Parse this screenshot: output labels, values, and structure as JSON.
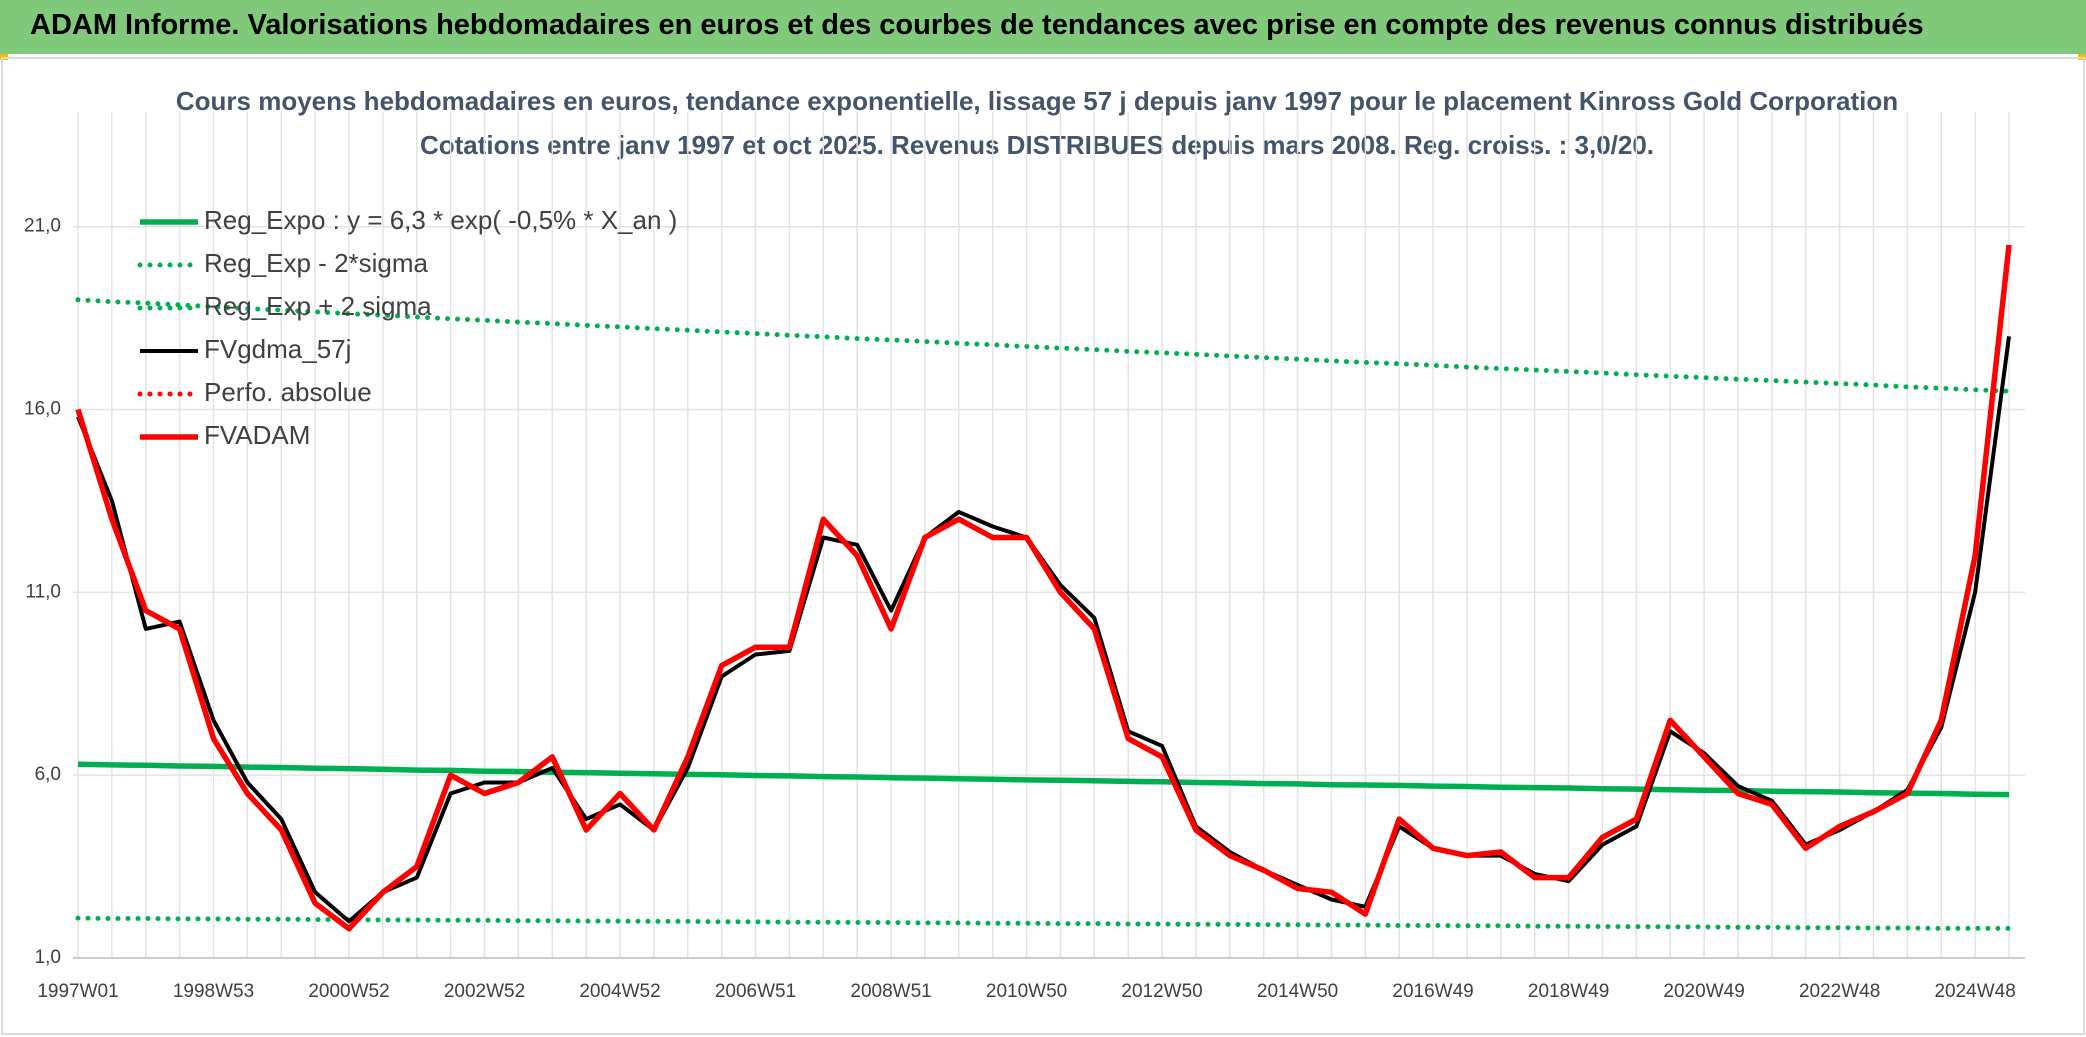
{
  "header": {
    "title": "ADAM Informe. Valorisations hebdomadaires en euros et des courbes de tendances avec prise en compte des revenus connus distribués"
  },
  "chart_data": {
    "type": "line",
    "title": "Cours moyens hebdomadaires en euros, tendance exponentielle, lissage 57 j depuis janv 1997 pour le placement Kinross Gold Corporation",
    "subtitle": "Cotations entre janv 1997 et oct 2025. Revenus DISTRIBUES depuis mars 2008. Reg. croiss. : 3,0/20.",
    "categories": [
      "1997W01",
      null,
      null,
      null,
      "1998W53",
      null,
      null,
      null,
      "2000W52",
      null,
      null,
      null,
      "2002W52",
      null,
      null,
      null,
      "2004W52",
      null,
      null,
      null,
      "2006W51",
      null,
      null,
      null,
      "2008W51",
      null,
      null,
      null,
      "2010W50",
      null,
      null,
      null,
      "2012W50",
      null,
      null,
      null,
      "2014W50",
      null,
      null,
      null,
      "2016W49",
      null,
      null,
      null,
      "2018W49",
      null,
      null,
      null,
      "2020W49",
      null,
      null,
      null,
      "2022W48",
      null,
      null,
      null,
      "2024W48",
      null
    ],
    "ylim": [
      1,
      24
    ],
    "yticks": [
      {
        "value": 1,
        "label": "1,0"
      },
      {
        "value": 6,
        "label": "6,0"
      },
      {
        "value": 11,
        "label": "11,0"
      },
      {
        "value": 16,
        "label": "16,0"
      },
      {
        "value": 21,
        "label": "21,0"
      }
    ],
    "grid": true,
    "legend": "upper left",
    "series": [
      {
        "name": "Reg_Expo : y = 6,3 * exp( -0,5% *  X_an )",
        "color": "#00b050",
        "dotted": false,
        "values": [
          6.3,
          6.28,
          6.27,
          6.25,
          6.24,
          6.22,
          6.21,
          6.19,
          6.18,
          6.16,
          6.14,
          6.13,
          6.11,
          6.1,
          6.08,
          6.07,
          6.05,
          6.04,
          6.02,
          6.01,
          5.99,
          5.98,
          5.96,
          5.95,
          5.93,
          5.92,
          5.9,
          5.89,
          5.87,
          5.86,
          5.85,
          5.83,
          5.82,
          5.8,
          5.79,
          5.77,
          5.76,
          5.74,
          5.73,
          5.72,
          5.7,
          5.69,
          5.67,
          5.66,
          5.65,
          5.63,
          5.62,
          5.6,
          5.59,
          5.58,
          5.56,
          5.55,
          5.54,
          5.52,
          5.51,
          5.5,
          5.48,
          5.47
        ]
      },
      {
        "name": "Reg_Exp - 2*sigma",
        "color": "#00b050",
        "dotted": true,
        "values": [
          2.09,
          2.08,
          2.08,
          2.07,
          2.07,
          2.06,
          2.06,
          2.05,
          2.05,
          2.04,
          2.04,
          2.03,
          2.03,
          2.02,
          2.02,
          2.01,
          2.01,
          2.0,
          2.0,
          1.99,
          1.99,
          1.98,
          1.98,
          1.97,
          1.97,
          1.96,
          1.96,
          1.95,
          1.95,
          1.94,
          1.94,
          1.93,
          1.93,
          1.92,
          1.92,
          1.91,
          1.91,
          1.9,
          1.9,
          1.89,
          1.89,
          1.88,
          1.88,
          1.87,
          1.87,
          1.86,
          1.86,
          1.85,
          1.85,
          1.84,
          1.84,
          1.83,
          1.83,
          1.82,
          1.82,
          1.81,
          1.81,
          1.81
        ]
      },
      {
        "name": "Reg_Exp + 2 sigma",
        "color": "#00b050",
        "dotted": true,
        "values": [
          19.0,
          18.95,
          18.91,
          18.86,
          18.81,
          18.76,
          18.72,
          18.67,
          18.62,
          18.58,
          18.53,
          18.48,
          18.44,
          18.39,
          18.35,
          18.3,
          18.26,
          18.21,
          18.17,
          18.12,
          18.08,
          18.03,
          17.99,
          17.94,
          17.9,
          17.86,
          17.81,
          17.77,
          17.72,
          17.68,
          17.64,
          17.59,
          17.55,
          17.51,
          17.46,
          17.42,
          17.38,
          17.33,
          17.29,
          17.25,
          17.21,
          17.16,
          17.12,
          17.08,
          17.04,
          17.0,
          16.95,
          16.91,
          16.87,
          16.83,
          16.79,
          16.75,
          16.71,
          16.67,
          16.62,
          16.58,
          16.54,
          16.5
        ]
      },
      {
        "name": "FVgdma_57j",
        "color": "#000000",
        "dotted": false,
        "values": [
          15.8,
          13.5,
          10,
          10.2,
          7.5,
          5.8,
          4.8,
          2.8,
          2.0,
          2.8,
          3.2,
          5.5,
          5.8,
          5.8,
          6.2,
          4.8,
          5.2,
          4.5,
          6.2,
          8.7,
          9.3,
          9.4,
          12.5,
          12.3,
          10.5,
          12.5,
          13.2,
          12.8,
          12.5,
          11.2,
          10.3,
          7.2,
          6.8,
          4.6,
          3.9,
          3.4,
          3.0,
          2.6,
          2.4,
          4.6,
          4.0,
          3.8,
          3.8,
          3.3,
          3.1,
          4.1,
          4.6,
          7.2,
          6.6,
          5.7,
          5.3,
          4.1,
          4.5,
          5.0,
          5.6,
          7.3,
          11,
          18
        ]
      },
      {
        "name": "Perfo. absolue",
        "color": "#ff0000",
        "dotted": true,
        "values": [
          null,
          null,
          null,
          null,
          null,
          null,
          null,
          null,
          null,
          null,
          null,
          null,
          null,
          null,
          null,
          null,
          null,
          null,
          null,
          null,
          null,
          null,
          null,
          null,
          null,
          null,
          null,
          null,
          null,
          null,
          null,
          null,
          null,
          null,
          null,
          null,
          null,
          null,
          null,
          null,
          null,
          null,
          null,
          null,
          null,
          null,
          null,
          null,
          null,
          null,
          null,
          null,
          null,
          null,
          null,
          null,
          null,
          null
        ]
      },
      {
        "name": "FVADAM",
        "color": "#ff0000",
        "dotted": false,
        "values": [
          16,
          13,
          10.5,
          10,
          7,
          5.5,
          4.5,
          2.5,
          1.8,
          2.8,
          3.5,
          6,
          5.5,
          5.8,
          6.5,
          4.5,
          5.5,
          4.5,
          6.5,
          9,
          9.5,
          9.5,
          13,
          12,
          10,
          12.5,
          13,
          12.5,
          12.5,
          11,
          10,
          7,
          6.5,
          4.5,
          3.8,
          3.4,
          2.9,
          2.8,
          2.2,
          4.8,
          4.0,
          3.8,
          3.9,
          3.2,
          3.2,
          4.3,
          4.8,
          7.5,
          6.5,
          5.5,
          5.2,
          4.0,
          4.6,
          5.0,
          5.5,
          7.5,
          12,
          20.5
        ]
      }
    ]
  }
}
